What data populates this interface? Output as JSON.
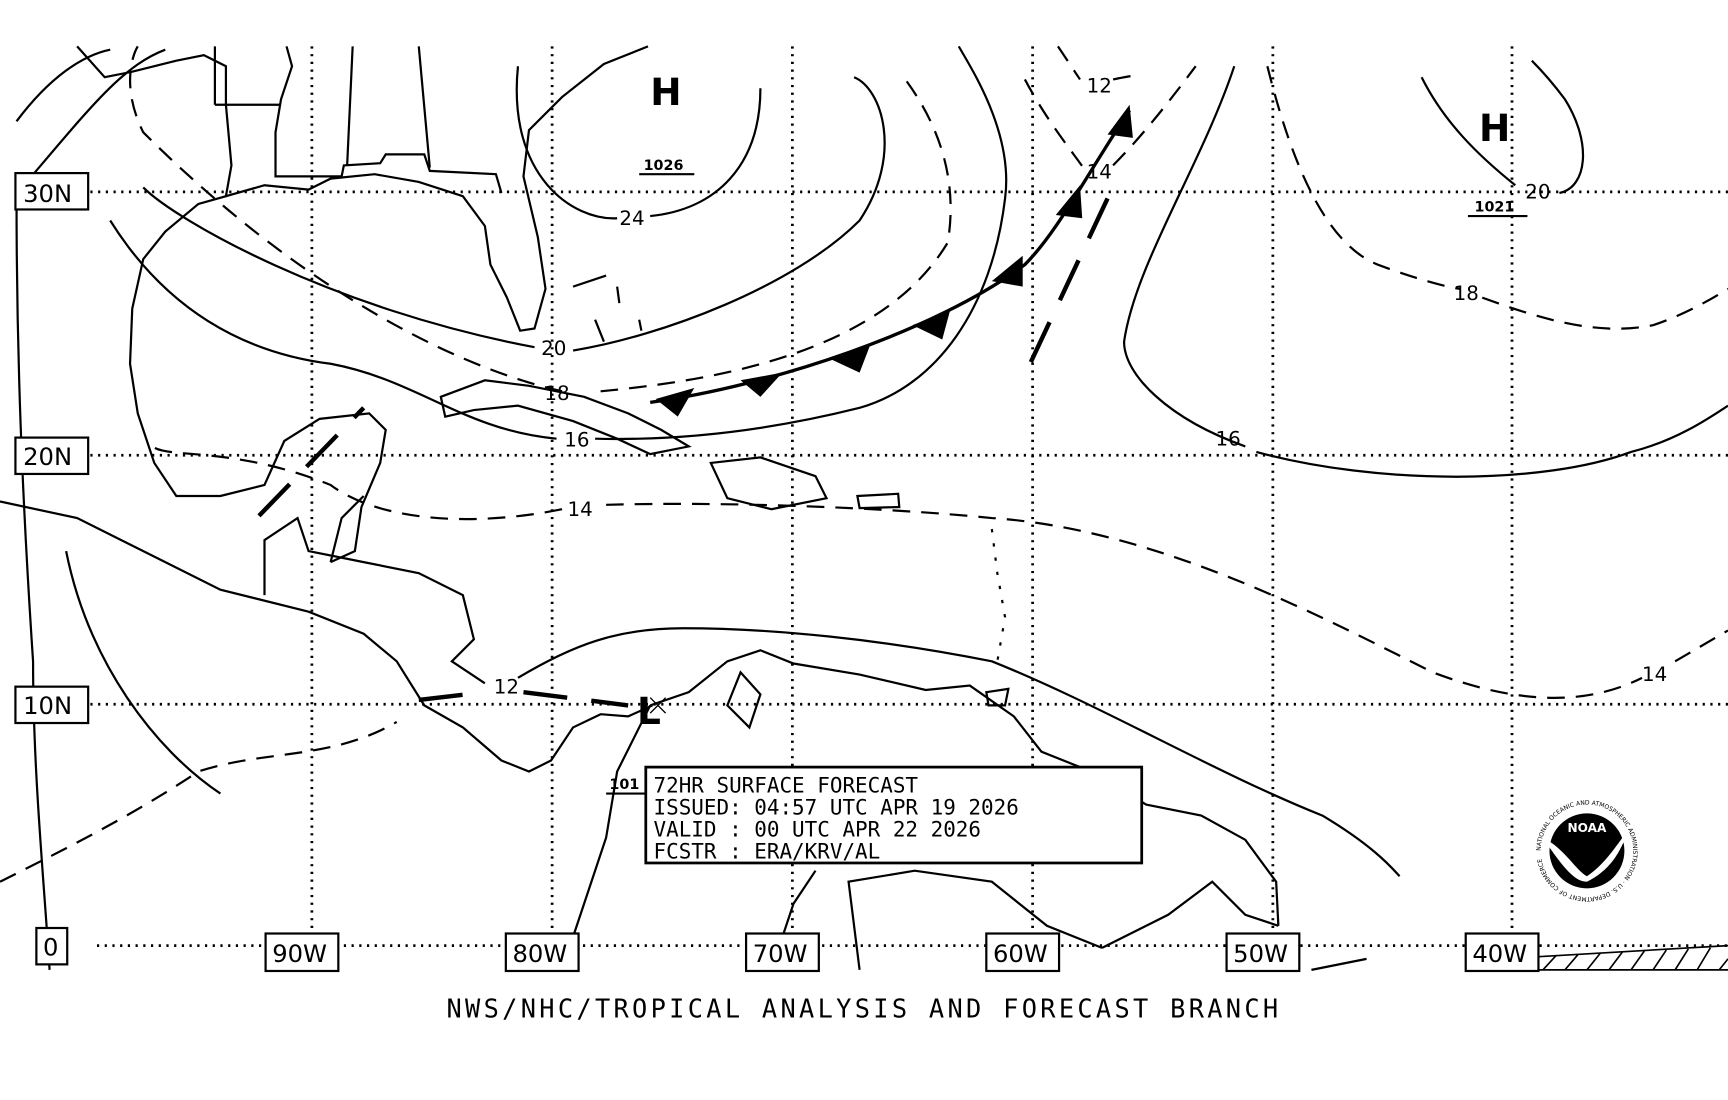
{
  "map": {
    "title_box": {
      "line1": "72HR SURFACE FORECAST",
      "line2": "ISSUED: 04:57 UTC APR 19 2026",
      "line3": "VALID : 00 UTC APR 22 2026",
      "line4": "FCSTR : ERA/KRV/AL"
    },
    "footer": "NWS/NHC/TROPICAL ANALYSIS AND FORECAST BRANCH",
    "lat_labels": [
      "30N",
      "20N",
      "10N",
      "0"
    ],
    "lon_labels": [
      "90W",
      "80W",
      "70W",
      "60W",
      "50W",
      "40W"
    ],
    "pressure_centers": [
      {
        "type": "H",
        "value": "1026"
      },
      {
        "type": "H",
        "value": "1021"
      },
      {
        "type": "L",
        "value": "101"
      }
    ],
    "contour_labels": [
      "24",
      "20",
      "18",
      "16",
      "14",
      "12",
      "12",
      "14",
      "20",
      "18",
      "16",
      "14"
    ],
    "logo": "NOAA",
    "logo_ring_text": "NATIONAL OCEANIC AND ATMOSPHERIC ADMINISTRATION · U.S. DEPARTMENT OF COMMERCE",
    "colors": {
      "ink": "#000000",
      "background": "#ffffff"
    }
  }
}
